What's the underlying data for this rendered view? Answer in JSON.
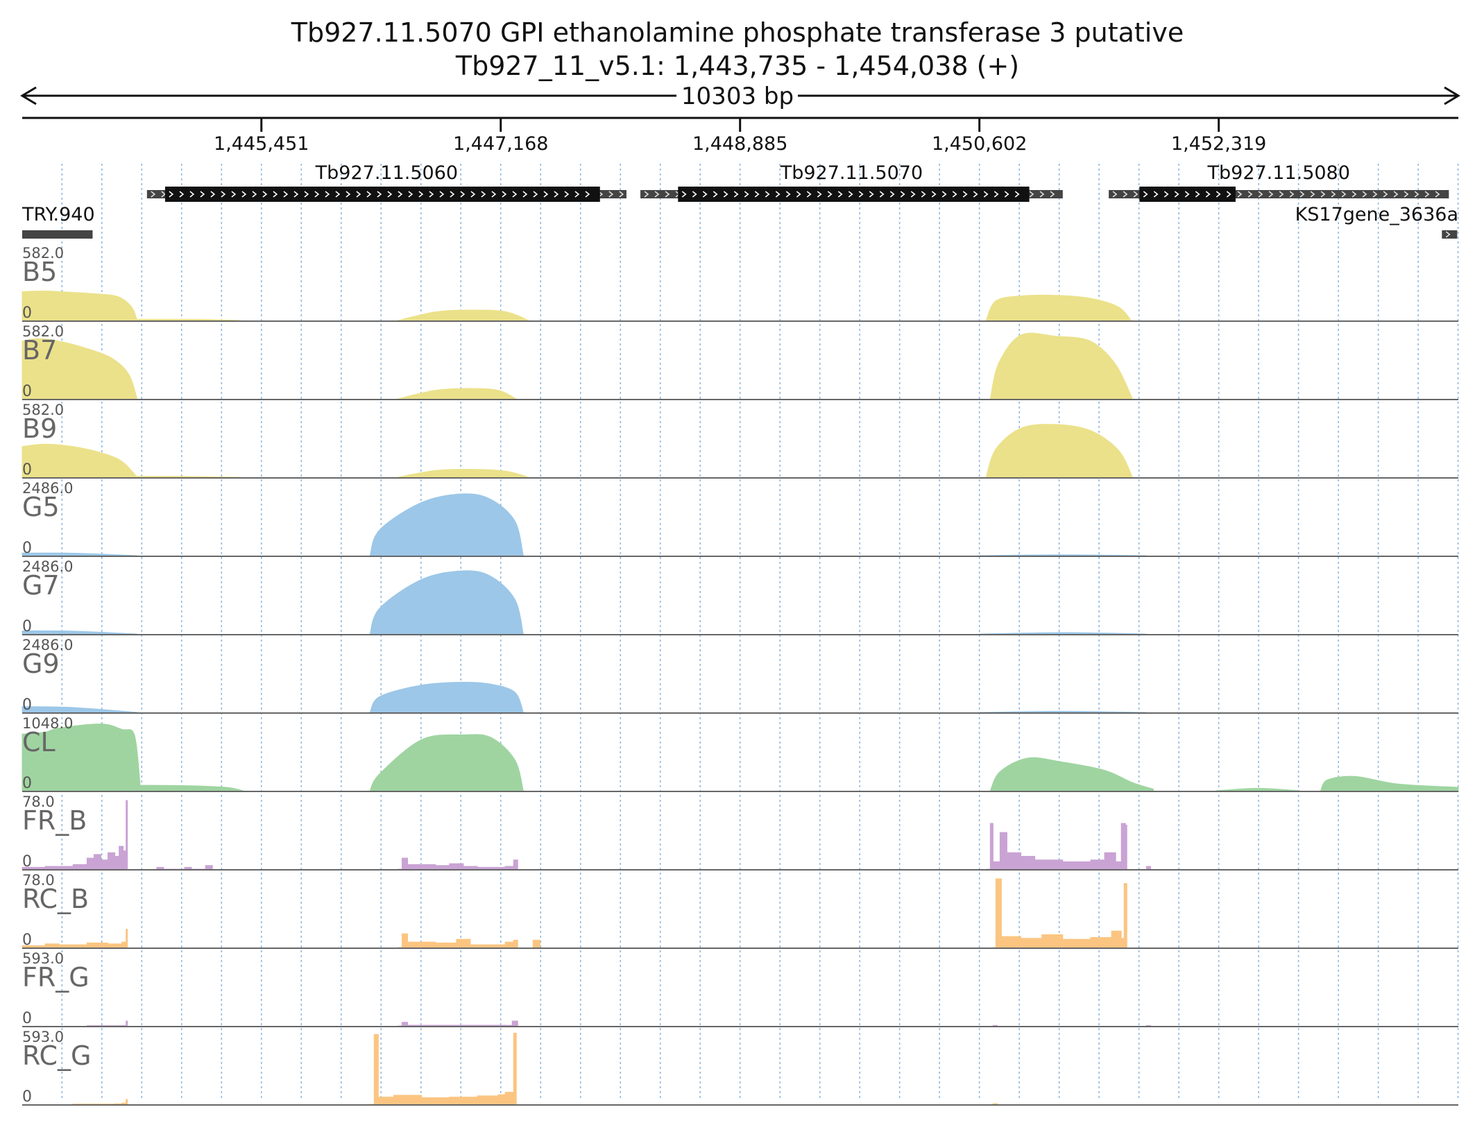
{
  "chart_data": {
    "type": "area",
    "title": "Tb927.11.5070  GPI ethanolamine phosphate transferase 3  putative",
    "subtitle": "Tb927_11_v5.1: 1,443,735 - 1,454,038 (+)",
    "span_label": "10303 bp",
    "xlim": [
      1443735,
      1454038
    ],
    "x_ticks": [
      {
        "value": 1445451,
        "label": "1,445,451"
      },
      {
        "value": 1447168,
        "label": "1,447,168"
      },
      {
        "value": 1448885,
        "label": "1,448,885"
      },
      {
        "value": 1450602,
        "label": "1,450,602"
      },
      {
        "value": 1452319,
        "label": "1,452,319"
      }
    ],
    "grid": "dotted vertical lines",
    "genes": [
      {
        "name": "Tb927.11.5060",
        "start": 1444630,
        "end": 1448070,
        "cds_start": 1444760,
        "cds_end": 1447880,
        "strand": "+"
      },
      {
        "name": "Tb927.11.5070",
        "start": 1448170,
        "end": 1451200,
        "cds_start": 1448440,
        "cds_end": 1450960,
        "strand": "+"
      },
      {
        "name": "Tb927.11.5080",
        "start": 1451530,
        "end": 1453970,
        "cds_start": 1451750,
        "cds_end": 1452440,
        "strand": "+"
      },
      {
        "name": "TRY.940",
        "start": 1443735,
        "end": 1444240,
        "label_side": "left"
      },
      {
        "name": "KS17gene_3636a",
        "start": 1453920,
        "end": 1454030,
        "label_side": "right",
        "strand": "+"
      }
    ],
    "tracks": [
      {
        "name": "B5",
        "max": 582.0,
        "max_label": "582.0",
        "zero_label": "0",
        "color": "#ebe18a",
        "kind": "smooth",
        "segments": [
          {
            "x": [
              1443735,
              1444500,
              1444540
            ],
            "y": [
              0,
              0,
              0
            ]
          },
          {
            "x": [
              1443735,
              1443900,
              1444050,
              1444250,
              1444420,
              1444520,
              1444560
            ],
            "y": [
              235,
              240,
              232,
              218,
              195,
              110,
              0
            ]
          },
          {
            "x": [
              1444560,
              1445000,
              1445300
            ],
            "y": [
              10,
              9,
              0
            ]
          },
          {
            "x": [
              1446430,
              1446700,
              1446950,
              1447200,
              1447370
            ],
            "y": [
              0,
              70,
              85,
              72,
              0
            ]
          },
          {
            "x": [
              1450650,
              1450720,
              1450900,
              1451150,
              1451400,
              1451600,
              1451690
            ],
            "y": [
              0,
              160,
              200,
              205,
              180,
              110,
              0
            ]
          }
        ]
      },
      {
        "name": "B7",
        "max": 582.0,
        "max_label": "582.0",
        "zero_label": "0",
        "color": "#ebe18a",
        "kind": "smooth",
        "segments": [
          {
            "x": [
              1443735,
              1443850,
              1444000,
              1444200,
              1444380,
              1444500,
              1444560
            ],
            "y": [
              470,
              490,
              470,
              410,
              330,
              200,
              0
            ]
          },
          {
            "x": [
              1446430,
              1446700,
              1446950,
              1447150,
              1447280
            ],
            "y": [
              0,
              70,
              85,
              70,
              0
            ]
          },
          {
            "x": [
              1450680,
              1450740,
              1450900,
              1451150,
              1451400,
              1451580,
              1451700
            ],
            "y": [
              0,
              290,
              520,
              510,
              470,
              280,
              0
            ]
          }
        ]
      },
      {
        "name": "B9",
        "max": 582.0,
        "max_label": "582.0",
        "zero_label": "0",
        "color": "#ebe18a",
        "kind": "smooth",
        "segments": [
          {
            "x": [
              1443735,
              1443900,
              1444100,
              1444300,
              1444450,
              1444560
            ],
            "y": [
              250,
              270,
              250,
              200,
              130,
              0
            ]
          },
          {
            "x": [
              1444560,
              1444900,
              1445300
            ],
            "y": [
              8,
              7,
              0
            ]
          },
          {
            "x": [
              1446430,
              1446700,
              1446950,
              1447200,
              1447370
            ],
            "y": [
              0,
              55,
              65,
              50,
              0
            ]
          },
          {
            "x": [
              1450650,
              1450720,
              1450900,
              1451150,
              1451400,
              1451600,
              1451700
            ],
            "y": [
              0,
              230,
              400,
              430,
              380,
              220,
              0
            ]
          }
        ]
      },
      {
        "name": "G5",
        "max": 2486.0,
        "max_label": "2486.0",
        "zero_label": "0",
        "color": "#9cc7e8",
        "kind": "smooth",
        "segments": [
          {
            "x": [
              1443735,
              1444100,
              1444560
            ],
            "y": [
              90,
              85,
              0
            ]
          },
          {
            "x": [
              1446230,
              1446300,
              1446600,
              1446900,
              1447100,
              1447270,
              1447330
            ],
            "y": [
              0,
              900,
              1850,
              2150,
              1950,
              1200,
              0
            ]
          },
          {
            "x": [
              1450600,
              1451200,
              1451800
            ],
            "y": [
              0,
              30,
              0
            ]
          }
        ]
      },
      {
        "name": "G7",
        "max": 2486.0,
        "max_label": "2486.0",
        "zero_label": "0",
        "color": "#9cc7e8",
        "kind": "smooth",
        "segments": [
          {
            "x": [
              1443735,
              1444100,
              1444560
            ],
            "y": [
              110,
              100,
              0
            ]
          },
          {
            "x": [
              1446230,
              1446300,
              1446600,
              1446900,
              1447100,
              1447270,
              1447330
            ],
            "y": [
              0,
              900,
              1900,
              2200,
              2000,
              1200,
              0
            ]
          },
          {
            "x": [
              1450600,
              1451200,
              1451800
            ],
            "y": [
              0,
              50,
              0
            ]
          }
        ]
      },
      {
        "name": "G9",
        "max": 2486.0,
        "max_label": "2486.0",
        "zero_label": "0",
        "color": "#9cc7e8",
        "kind": "smooth",
        "segments": [
          {
            "x": [
              1443735,
              1444100,
              1444560
            ],
            "y": [
              200,
              170,
              0
            ]
          },
          {
            "x": [
              1446230,
              1446300,
              1446600,
              1446900,
              1447100,
              1447270,
              1447330
            ],
            "y": [
              0,
              550,
              950,
              1050,
              980,
              700,
              0
            ]
          },
          {
            "x": [
              1450600,
              1451200,
              1451800
            ],
            "y": [
              0,
              40,
              0
            ]
          }
        ]
      },
      {
        "name": "CL",
        "max": 1048.0,
        "max_label": "1048.0",
        "zero_label": "0",
        "color": "#9fd4a1",
        "kind": "smooth",
        "segments": [
          {
            "x": [
              1443735,
              1443900,
              1444000,
              1444300,
              1444450,
              1444540,
              1444580
            ],
            "y": [
              830,
              860,
              920,
              980,
              900,
              820,
              120
            ]
          },
          {
            "x": [
              1444580,
              1444900,
              1445200,
              1445320
            ],
            "y": [
              80,
              75,
              50,
              0
            ]
          },
          {
            "x": [
              1446230,
              1446300,
              1446600,
              1446900,
              1447100,
              1447270,
              1447330
            ],
            "y": [
              0,
              250,
              750,
              820,
              780,
              450,
              0
            ]
          },
          {
            "x": [
              1450680,
              1450750,
              1450950,
              1451200,
              1451500,
              1451700,
              1451850
            ],
            "y": [
              0,
              280,
              480,
              420,
              300,
              120,
              25
            ]
          },
          {
            "x": [
              1452300,
              1452600,
              1452900
            ],
            "y": [
              0,
              35,
              0
            ]
          },
          {
            "x": [
              1453050,
              1453100,
              1453300,
              1453600,
              1454038
            ],
            "y": [
              0,
              160,
              210,
              100,
              50
            ]
          }
        ]
      },
      {
        "name": "FR_B",
        "max": 78.0,
        "max_label": "78.0",
        "zero_label": "0",
        "color": "#c9a3d4",
        "kind": "spiky",
        "segments": [
          {
            "x": [
              1443735,
              1443900,
              1444100,
              1444200,
              1444250,
              1444300,
              1444350,
              1444400,
              1444430,
              1444460,
              1444480,
              1444490
            ],
            "y": [
              2,
              3,
              5,
              12,
              16,
              10,
              18,
              14,
              25,
              20,
              75,
              0
            ]
          },
          {
            "x": [
              1444700,
              1444750,
              1444900,
              1444950,
              1445050,
              1445100
            ],
            "y": [
              2,
              0,
              2,
              0,
              4,
              0
            ]
          },
          {
            "x": [
              1446430,
              1446460,
              1446500,
              1446700,
              1446800,
              1446900,
              1447000,
              1447200,
              1447260,
              1447290
            ],
            "y": [
              0,
              12,
              5,
              4,
              6,
              3,
              2,
              3,
              10,
              0
            ]
          },
          {
            "x": [
              1450650,
              1450680,
              1450700,
              1450750,
              1450800,
              1450900,
              1451000,
              1451200,
              1451400,
              1451500,
              1451580,
              1451620,
              1451650,
              1451660
            ],
            "y": [
              0,
              50,
              8,
              40,
              18,
              14,
              10,
              8,
              10,
              18,
              8,
              50,
              48,
              0
            ]
          },
          {
            "x": [
              1451800,
              1451830
            ],
            "y": [
              3,
              0
            ]
          }
        ]
      },
      {
        "name": "RC_B",
        "max": 78.0,
        "max_label": "78.0",
        "zero_label": "0",
        "color": "#fbc581",
        "kind": "spiky",
        "segments": [
          {
            "x": [
              1443735,
              1443900,
              1444000,
              1444200,
              1444350,
              1444450,
              1444480,
              1444490
            ],
            "y": [
              2,
              4,
              3,
              5,
              4,
              6,
              20,
              0
            ]
          },
          {
            "x": [
              1446430,
              1446460,
              1446500,
              1446700,
              1446850,
              1446950,
              1447200,
              1447260,
              1447290
            ],
            "y": [
              0,
              15,
              6,
              5,
              9,
              3,
              6,
              8,
              0
            ]
          },
          {
            "x": [
              1447400,
              1447450
            ],
            "y": [
              8,
              0
            ]
          },
          {
            "x": [
              1450700,
              1450720,
              1450760,
              1450900,
              1451050,
              1451200,
              1451400,
              1451550,
              1451620,
              1451640,
              1451660
            ],
            "y": [
              0,
              75,
              12,
              10,
              14,
              9,
              11,
              18,
              10,
              70,
              0
            ]
          }
        ]
      },
      {
        "name": "FR_G",
        "max": 593.0,
        "max_label": "593.0",
        "zero_label": "0",
        "color": "#c9a3d4",
        "kind": "spiky",
        "segments": [
          {
            "x": [
              1444200,
              1444450,
              1444480,
              1444490
            ],
            "y": [
              2,
              3,
              40,
              0
            ]
          },
          {
            "x": [
              1446430,
              1446460,
              1446500,
              1447200,
              1447250,
              1447290
            ],
            "y": [
              0,
              30,
              6,
              5,
              40,
              0
            ]
          },
          {
            "x": [
              1450700,
              1450730
            ],
            "y": [
              4,
              0
            ]
          },
          {
            "x": [
              1451800,
              1451830
            ],
            "y": [
              3,
              0
            ]
          }
        ]
      },
      {
        "name": "RC_G",
        "max": 593.0,
        "max_label": "593.0",
        "zero_label": "0",
        "color": "#fbc581",
        "kind": "spiky",
        "segments": [
          {
            "x": [
              1444100,
              1444400,
              1444450,
              1444480,
              1444490
            ],
            "y": [
              2,
              4,
              10,
              40,
              0
            ]
          },
          {
            "x": [
              1446230,
              1446260,
              1446290,
              1446400,
              1446600,
              1446800,
              1447000,
              1447150,
              1447200,
              1447260,
              1447280
            ],
            "y": [
              0,
              580,
              60,
              75,
              55,
              60,
              70,
              80,
              100,
              590,
              0
            ]
          },
          {
            "x": [
              1450700,
              1450730
            ],
            "y": [
              6,
              0
            ]
          }
        ]
      }
    ]
  },
  "colors": {
    "text": "#111111",
    "track_label": "#666666",
    "gene_bar": "#111111",
    "gene_utr": "#444444",
    "grid": "#8db8e0",
    "baseline": "#666666"
  }
}
